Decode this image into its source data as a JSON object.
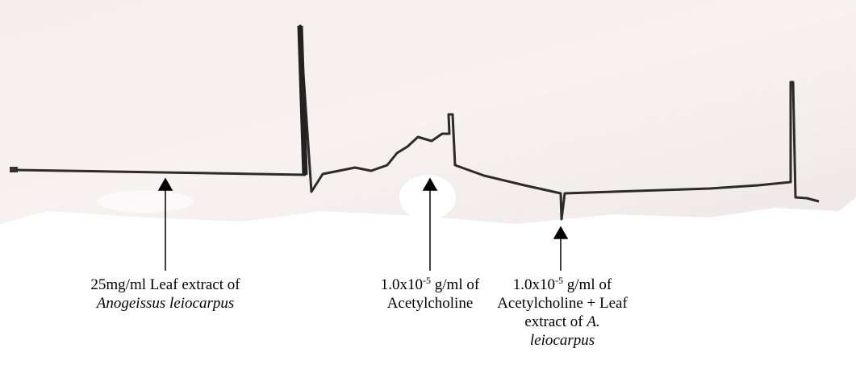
{
  "annotations": [
    {
      "lines": [
        [
          {
            "text": "25mg/ml Leaf extract of"
          }
        ],
        [
          {
            "text": "Anogeissus leiocarpus",
            "italic": true
          }
        ]
      ]
    },
    {
      "lines": [
        [
          {
            "text": "1.0x10"
          },
          {
            "text": "-5",
            "sup": true
          },
          {
            "text": " g/ml of"
          }
        ],
        [
          {
            "text": "Acetylcholine"
          }
        ]
      ]
    },
    {
      "lines": [
        [
          {
            "text": "1.0x10"
          },
          {
            "text": "-5",
            "sup": true
          },
          {
            "text": " g/ml of"
          }
        ],
        [
          {
            "text": "Acetylcholine + Leaf"
          }
        ],
        [
          {
            "text": "extract of "
          },
          {
            "text": "A.",
            "italic": true
          }
        ],
        [
          {
            "text": "leiocarpus",
            "italic": true
          }
        ]
      ]
    }
  ]
}
